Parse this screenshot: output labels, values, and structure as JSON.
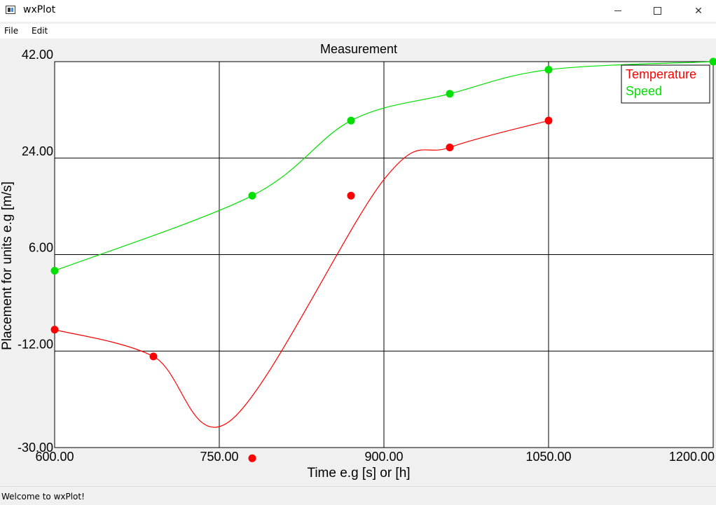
{
  "window": {
    "title": "wxPlot",
    "minimize_glyph": "",
    "maximize_glyph": "",
    "close_glyph": "✕"
  },
  "menu": {
    "items": [
      "File",
      "Edit"
    ]
  },
  "status": {
    "text": "Welcome to wxPlot!"
  },
  "colors": {
    "temperature": "#ff0000",
    "speed": "#00e000",
    "grid": "#000000"
  },
  "chart_data": {
    "type": "line",
    "title": "Measurement",
    "xlabel": "Time e.g [s] or [h]",
    "ylabel": "Placement for units e.g [m/s]",
    "xlim": [
      600,
      1200
    ],
    "ylim": [
      -30,
      42
    ],
    "x_ticks": [
      "600.00",
      "750.00",
      "900.00",
      "1050.00",
      "1200.00"
    ],
    "y_ticks": [
      "42.00",
      "24.00",
      "6.00",
      "-12.00",
      "-30.00"
    ],
    "grid": true,
    "legend_position": "top-right",
    "series": [
      {
        "name": "Temperature",
        "color": "#ff0000",
        "x": [
          600,
          690,
          780,
          870,
          960,
          1050
        ],
        "y": [
          -8,
          -13,
          -32,
          17,
          26,
          31
        ]
      },
      {
        "name": "Speed",
        "color": "#00e000",
        "x": [
          600,
          780,
          870,
          960,
          1050,
          1200
        ],
        "y": [
          3,
          17,
          31,
          36,
          40.5,
          42
        ]
      }
    ]
  }
}
